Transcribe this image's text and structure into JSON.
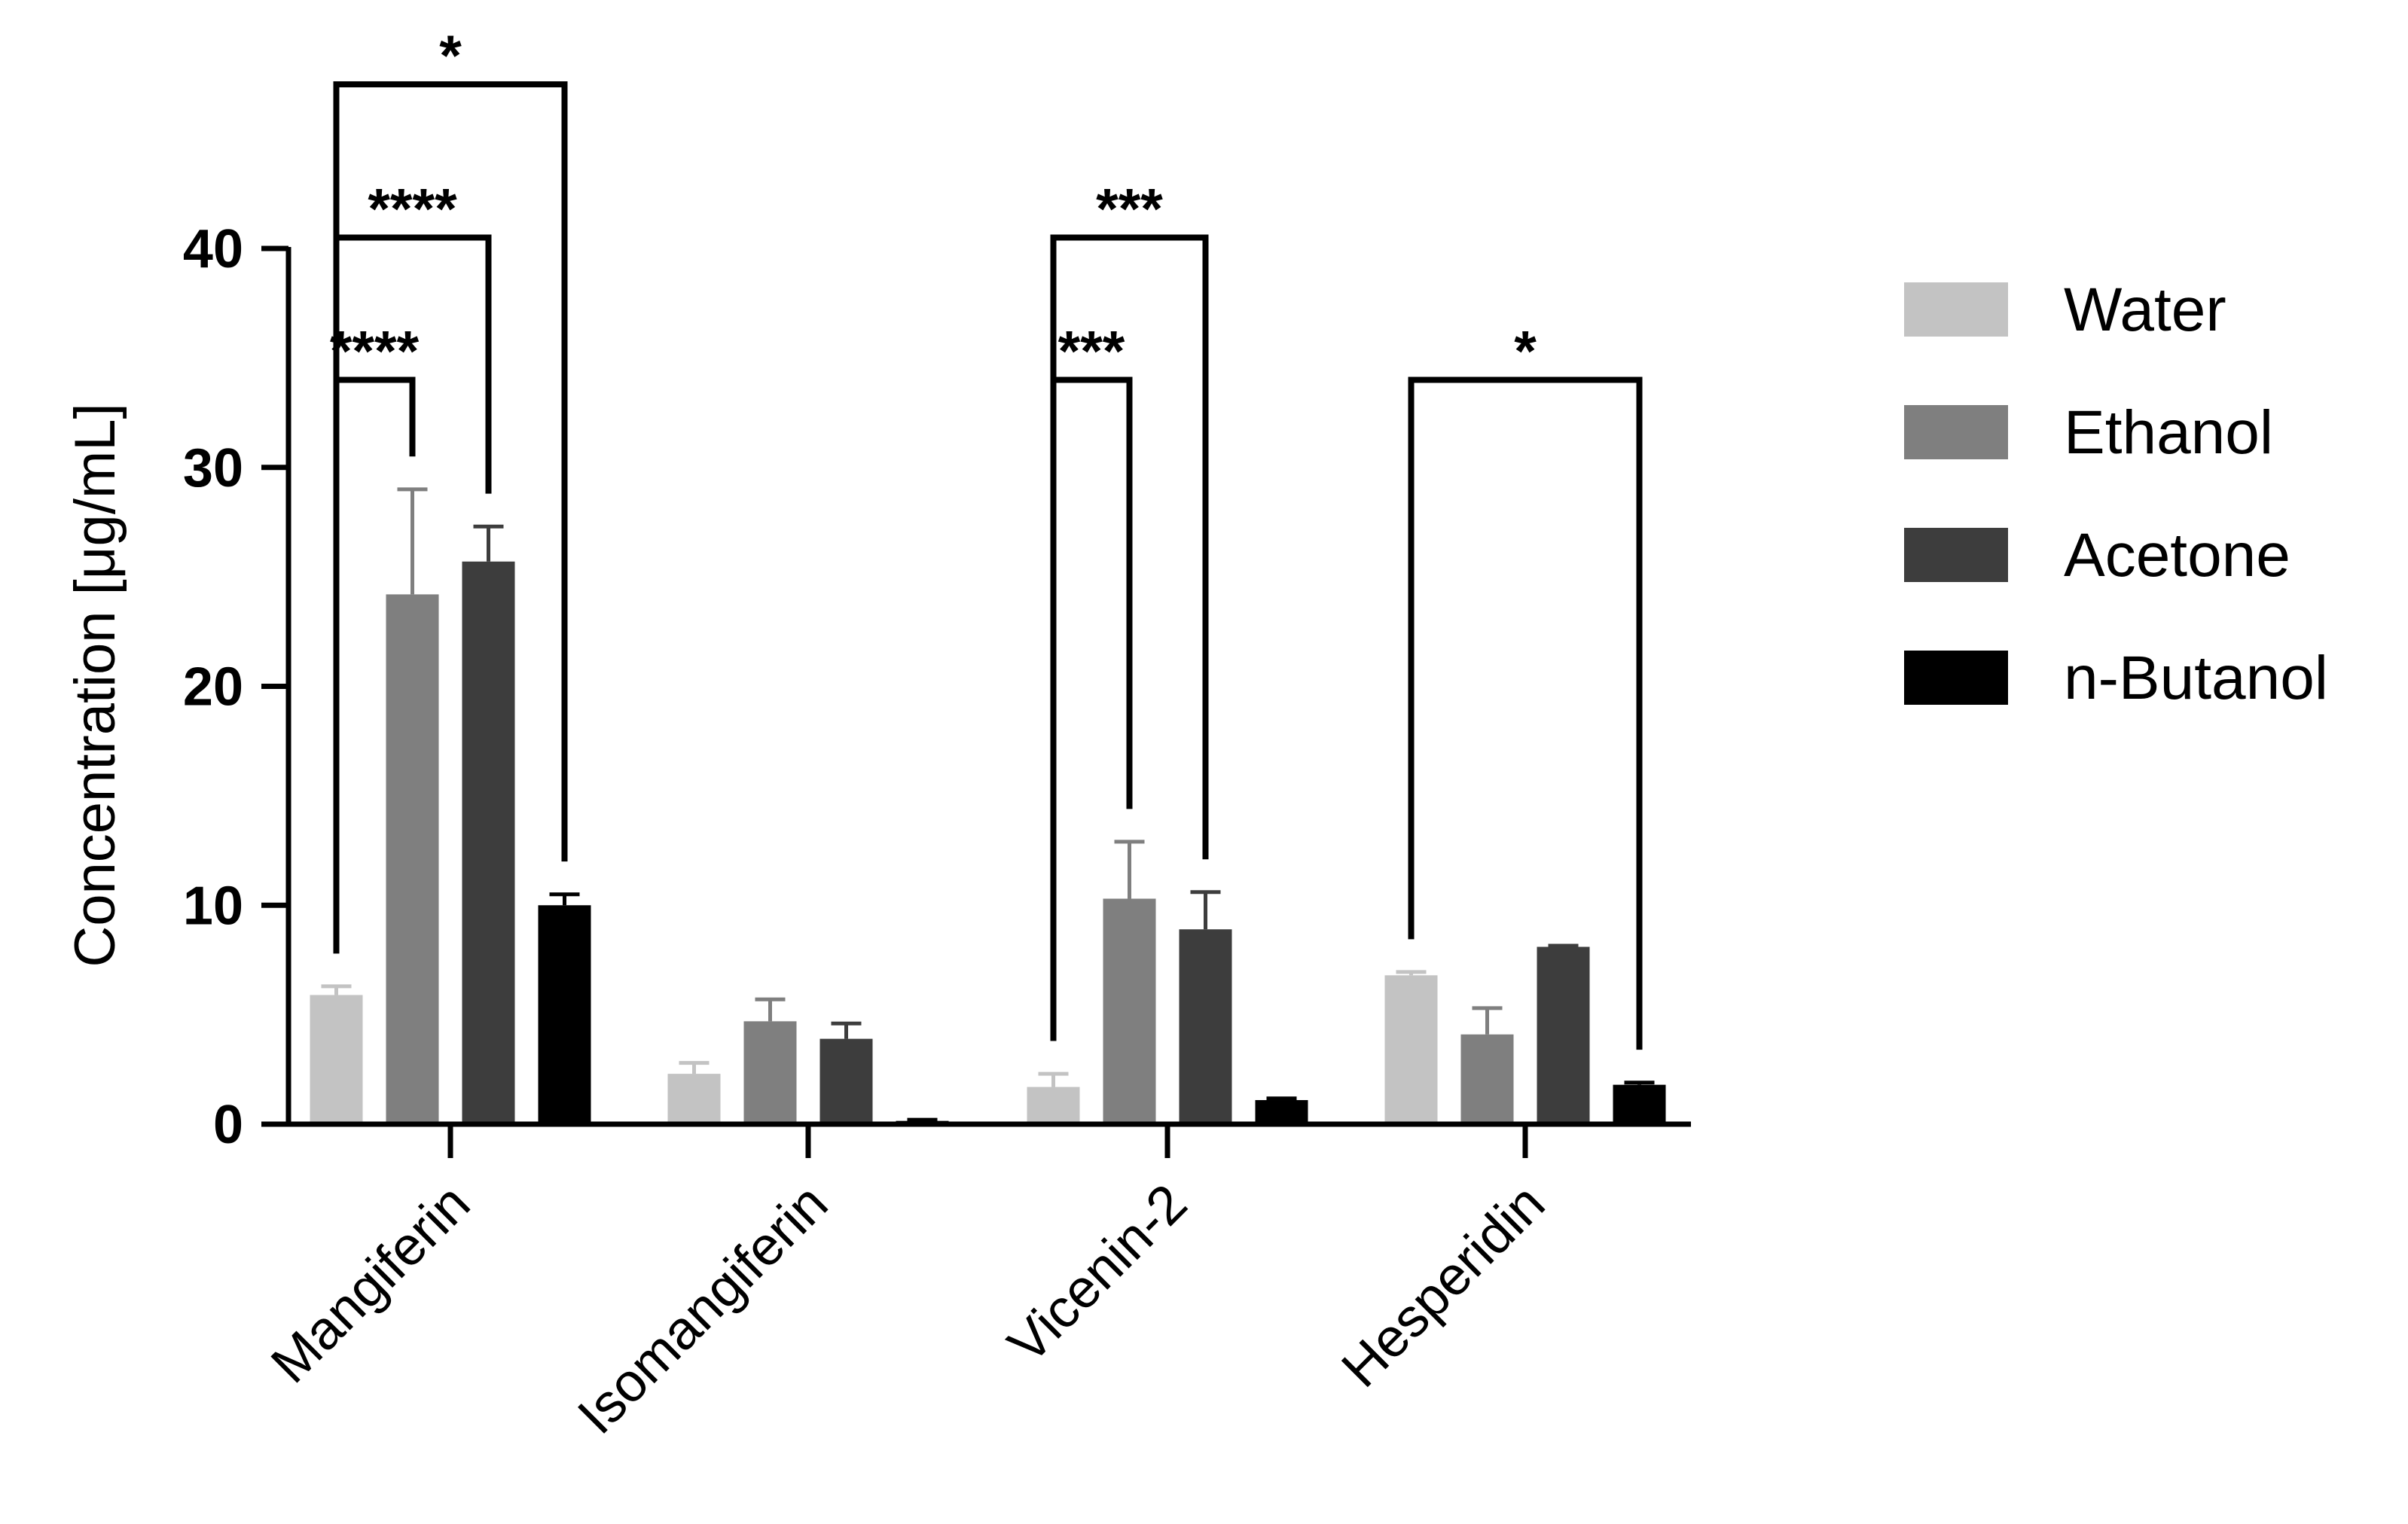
{
  "chart_data": {
    "type": "bar",
    "title": "",
    "xlabel": "",
    "ylabel": "Concentration [μg/mL]",
    "ylim": [
      0,
      40
    ],
    "yticks": [
      0,
      10,
      20,
      30,
      40
    ],
    "categories": [
      "Mangiferin",
      "Isomangiferin",
      "Vicenin-2",
      "Hesperidin"
    ],
    "legend_position": "right",
    "series": [
      {
        "name": "Water",
        "color": "#c3c3c3",
        "values": [
          5.9,
          2.3,
          1.7,
          6.8
        ],
        "errors": [
          0.4,
          0.5,
          0.6,
          0.15
        ]
      },
      {
        "name": "Ethanol",
        "color": "#7f7f7f",
        "values": [
          24.2,
          4.7,
          10.3,
          4.1
        ],
        "errors": [
          4.8,
          1.0,
          2.6,
          1.2
        ]
      },
      {
        "name": "Acetone",
        "color": "#3d3d3d",
        "values": [
          25.7,
          3.9,
          8.9,
          8.1
        ],
        "errors": [
          1.6,
          0.7,
          1.7,
          0.05
        ]
      },
      {
        "name": "n-Butanol",
        "color": "#000000",
        "values": [
          10.0,
          0.15,
          1.1,
          1.8
        ],
        "errors": [
          0.5,
          0.05,
          0.08,
          0.1
        ]
      }
    ],
    "significance": [
      {
        "category": "Mangiferin",
        "from": "Water",
        "to": "Ethanol",
        "label": "****"
      },
      {
        "category": "Mangiferin",
        "from": "Water",
        "to": "Acetone",
        "label": "****"
      },
      {
        "category": "Mangiferin",
        "from": "Water",
        "to": "n-Butanol",
        "label": "*"
      },
      {
        "category": "Vicenin-2",
        "from": "Water",
        "to": "Ethanol",
        "label": "***"
      },
      {
        "category": "Vicenin-2",
        "from": "Water",
        "to": "Acetone",
        "label": "***"
      },
      {
        "category": "Hesperidin",
        "from": "Water",
        "to": "n-Butanol",
        "label": "*"
      }
    ]
  }
}
